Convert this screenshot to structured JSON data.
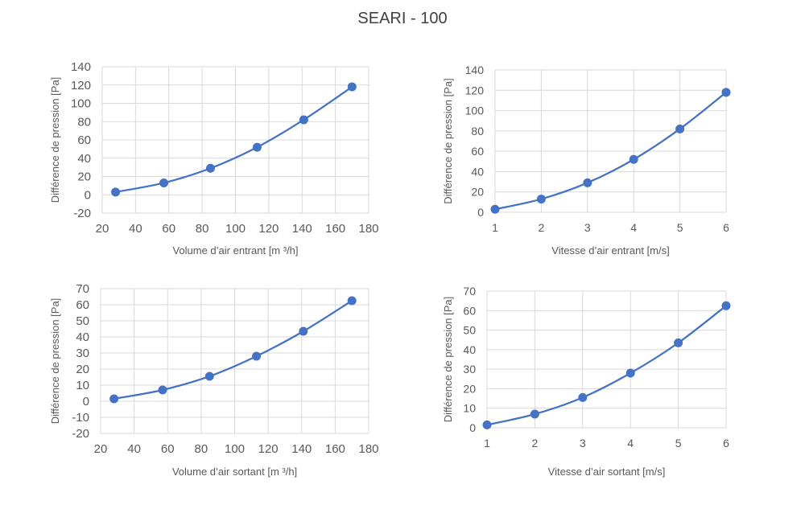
{
  "page_title": "SEARI - 100",
  "chart_data": [
    {
      "type": "line",
      "title": "",
      "xlabel": "Volume d’air entrant [m ³/h]",
      "ylabel": "Différence de pression [Pa]",
      "xlim": [
        20,
        180
      ],
      "xticks": [
        20,
        40,
        60,
        80,
        100,
        120,
        140,
        160,
        180
      ],
      "ylim": [
        -20,
        140
      ],
      "yticks": [
        -20,
        0,
        20,
        40,
        60,
        80,
        100,
        120,
        140
      ],
      "grid": true,
      "smooth": true,
      "color": "#4472C4",
      "series": [
        {
          "x": [
            28,
            57,
            85,
            113,
            141,
            170
          ],
          "y": [
            3,
            13,
            29,
            52,
            82,
            118
          ]
        }
      ]
    },
    {
      "type": "line",
      "title": "",
      "xlabel": "Vitesse d’air entrant [m/s]",
      "ylabel": "Différence de pression [Pa]",
      "xlim": [
        1,
        6
      ],
      "xticks": [
        1,
        2,
        3,
        4,
        5,
        6
      ],
      "ylim": [
        0,
        140
      ],
      "yticks": [
        0,
        20,
        40,
        60,
        80,
        100,
        120,
        140
      ],
      "grid": true,
      "smooth": true,
      "color": "#4472C4",
      "series": [
        {
          "x": [
            1,
            2,
            3,
            4,
            5,
            6
          ],
          "y": [
            3,
            13,
            29,
            52,
            82,
            118
          ]
        }
      ]
    },
    {
      "type": "line",
      "title": "",
      "xlabel": "Volume d’air sortant [m ³/h]",
      "ylabel": "Différence de pression [Pa]",
      "xlim": [
        20,
        180
      ],
      "xticks": [
        20,
        40,
        60,
        80,
        100,
        120,
        140,
        160,
        180
      ],
      "ylim": [
        -20,
        70
      ],
      "yticks": [
        -20,
        -10,
        0,
        10,
        20,
        30,
        40,
        50,
        60,
        70
      ],
      "grid": true,
      "smooth": true,
      "color": "#4472C4",
      "series": [
        {
          "x": [
            28,
            57,
            85,
            113,
            141,
            170
          ],
          "y": [
            1.5,
            7,
            15.5,
            28,
            43.5,
            62.5
          ]
        }
      ]
    },
    {
      "type": "line",
      "title": "",
      "xlabel": "Vitesse d’air sortant [m/s]",
      "ylabel": "Différence de pression [Pa]",
      "xlim": [
        1,
        6
      ],
      "xticks": [
        1,
        2,
        3,
        4,
        5,
        6
      ],
      "ylim": [
        0,
        70
      ],
      "yticks": [
        0,
        10,
        20,
        30,
        40,
        50,
        60,
        70
      ],
      "grid": true,
      "smooth": true,
      "color": "#4472C4",
      "series": [
        {
          "x": [
            1,
            2,
            3,
            4,
            5,
            6
          ],
          "y": [
            1.5,
            7,
            15.5,
            28,
            43.5,
            62.5
          ]
        }
      ]
    }
  ]
}
